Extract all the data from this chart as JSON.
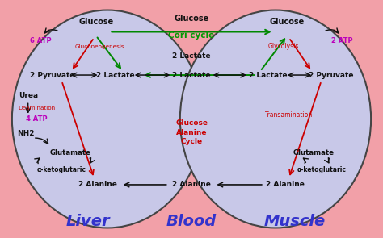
{
  "bg_color": "#f2a0a8",
  "ellipse_fill": "#c8c8e8",
  "ellipse_edge": "#444444",
  "title_liver": "Liver",
  "title_blood": "Blood",
  "title_muscle": "Muscle",
  "cori_cycle_label": "Cori cycle",
  "glucose_alanine_label": "Glucose\nAlanine\nCycle",
  "label_color": "#3333cc",
  "cori_color": "#009900",
  "red_color": "#cc0000",
  "magenta_color": "#bb00bb",
  "black_color": "#111111",
  "arrow_red": "#cc0000",
  "arrow_black": "#111111",
  "arrow_green": "#008800"
}
